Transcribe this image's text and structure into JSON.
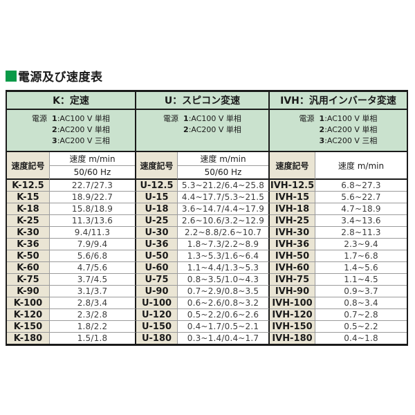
{
  "title": "電源及び速度表",
  "colors": {
    "accent_green": "#0a9a48",
    "section_green": "#cae2ce",
    "sign_beige": "#eae5d4",
    "border_dark": "#1a1a1a",
    "border_light": "#9a9a9a"
  },
  "sections": [
    {
      "code": "K",
      "title": "K：定速",
      "power_prefix": "電源 ",
      "power_lines": [
        {
          "num": "1",
          "desc": ":AC100 V 単相"
        },
        {
          "num": "2",
          "desc": ":AC200 V 単相"
        },
        {
          "num": "3",
          "desc": ":AC200 V 三相"
        }
      ],
      "col_headers": {
        "sign": "速度記号",
        "speed": "速度 m/min",
        "hz": "50/60 Hz"
      }
    },
    {
      "code": "U",
      "title": "U：スピコン変速",
      "power_prefix": "電源 ",
      "power_lines": [
        {
          "num": "1",
          "desc": ":AC100 V 単相"
        },
        {
          "num": "2",
          "desc": ":AC200 V 単相"
        }
      ],
      "col_headers": {
        "sign": "速度記号",
        "speed": "速度 m/min",
        "hz": "50/60 Hz"
      }
    },
    {
      "code": "IVH",
      "title": "IVH：汎用インバータ変速",
      "power_prefix": "電源 ",
      "power_lines": [
        {
          "num": "1",
          "desc": ":AC100 V 単相"
        },
        {
          "num": "2",
          "desc": ":AC200 V 単相"
        },
        {
          "num": "3",
          "desc": ":AC200 V 三相"
        }
      ],
      "col_headers": {
        "sign": "速度記号",
        "speed": "速度 m/min"
      }
    }
  ],
  "rows": [
    [
      "K-12.5",
      "22.7/27.3",
      "U-12.5",
      "5.3~21.2/6.4~25.8",
      "IVH-12.5",
      "6.8~27.3"
    ],
    [
      "K-15",
      "18.9/22.7",
      "U-15",
      "4.4~17.7/5.3~21.5",
      "IVH-15",
      "5.6~22.7"
    ],
    [
      "K-18",
      "15.8/18.9",
      "U-18",
      "3.6~14.7/4.4~17.9",
      "IVH-18",
      "4.7~18.9"
    ],
    [
      "K-25",
      "11.3/13.6",
      "U-25",
      "2.6~10.6/3.2~12.9",
      "IVH-25",
      "3.4~13.6"
    ],
    [
      "K-30",
      "9.4/11.3",
      "U-30",
      "2.2~8.8/2.6~10.7",
      "IVH-30",
      "2.8~11.3"
    ],
    [
      "K-36",
      "7.9/9.4",
      "U-36",
      "1.8~7.3/2.2~8.9",
      "IVH-36",
      "2.3~9.4"
    ],
    [
      "K-50",
      "5.6/6.8",
      "U-50",
      "1.3~5.3/1.6~6.4",
      "IVH-50",
      "1.7~6.8"
    ],
    [
      "K-60",
      "4.7/5.6",
      "U-60",
      "1.1~4.4/1.3~5.3",
      "IVH-60",
      "1.4~5.6"
    ],
    [
      "K-75",
      "3.7/4.5",
      "U-75",
      "0.8~3.5/1.0~4.3",
      "IVH-75",
      "1.1~4.5"
    ],
    [
      "K-90",
      "3.1/3.7",
      "U-90",
      "0.7~2.9/0.8~3.5",
      "IVH-90",
      "0.9~3.7"
    ],
    [
      "K-100",
      "2.8/3.4",
      "U-100",
      "0.6~2.6/0.8~3.2",
      "IVH-100",
      "0.8~3.4"
    ],
    [
      "K-120",
      "2.3/2.8",
      "U-120",
      "0.5~2.2/0.6~2.6",
      "IVH-120",
      "0.7~2.8"
    ],
    [
      "K-150",
      "1.8/2.2",
      "U-150",
      "0.4~1.7/0.5~2.1",
      "IVH-150",
      "0.5~2.2"
    ],
    [
      "K-180",
      "1.5/1.8",
      "U-180",
      "0.3~1.4/0.4~1.7",
      "IVH-180",
      "0.4~1.8"
    ]
  ]
}
